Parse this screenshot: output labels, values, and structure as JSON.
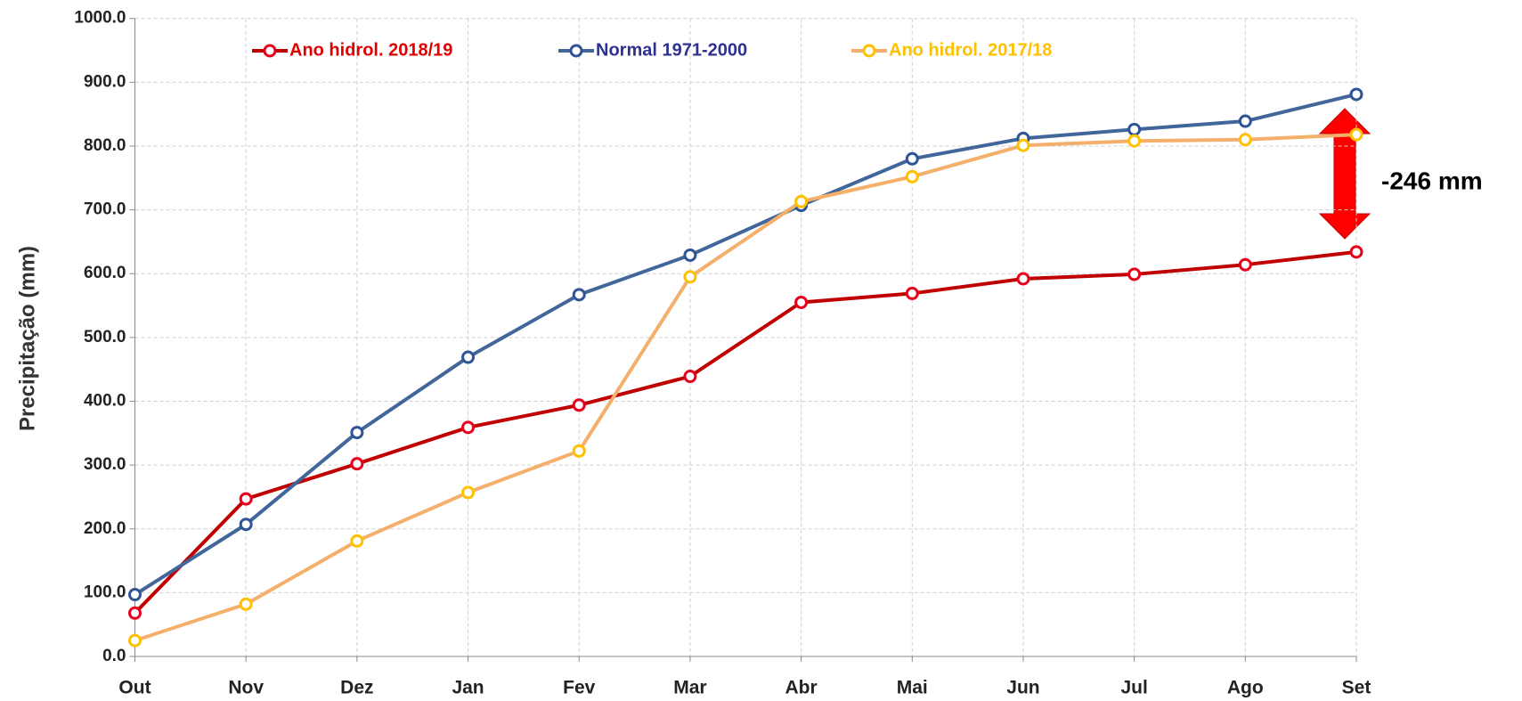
{
  "chart_data": {
    "type": "line",
    "y_label": "Precipitação (mm)",
    "annotation": "-246 mm",
    "categories": [
      "Out",
      "Nov",
      "Dez",
      "Jan",
      "Fev",
      "Mar",
      "Abr",
      "Mai",
      "Jun",
      "Jul",
      "Ago",
      "Set"
    ],
    "series": [
      {
        "name": "Ano hidrol. 2018/19",
        "color": "#c00000",
        "marker_color": "#e8001c",
        "label_color": "#e00000",
        "values": [
          68,
          247,
          302,
          359,
          394,
          439,
          555,
          569,
          592,
          599,
          614,
          634
        ]
      },
      {
        "name": "Normal 1971-2000",
        "color": "#41679a",
        "marker_color": "#2f5597",
        "label_color": "#2e3192",
        "values": [
          97,
          207,
          351,
          469,
          567,
          629,
          707,
          780,
          812,
          826,
          839,
          881
        ]
      },
      {
        "name": "Ano hidrol. 2017/18",
        "color": "#f4b06a",
        "marker_color": "#ffc000",
        "label_color": "#ffc000",
        "values": [
          25,
          82,
          181,
          257,
          322,
          595,
          713,
          752,
          801,
          808,
          810,
          818
        ]
      }
    ],
    "ylim": [
      0,
      1000
    ],
    "yticks": [
      {
        "value": 0,
        "label": "0.0"
      },
      {
        "value": 100,
        "label": "100.0"
      },
      {
        "value": 200,
        "label": "200.0"
      },
      {
        "value": 300,
        "label": "300.0"
      },
      {
        "value": 400,
        "label": "400.0"
      },
      {
        "value": 500,
        "label": "500.0"
      },
      {
        "value": 600,
        "label": "600.0"
      },
      {
        "value": 700,
        "label": "700.0"
      },
      {
        "value": 800,
        "label": "800.0"
      },
      {
        "value": 900,
        "label": "900.0"
      },
      {
        "value": 1000,
        "label": "1000.0"
      }
    ],
    "grid": true
  }
}
